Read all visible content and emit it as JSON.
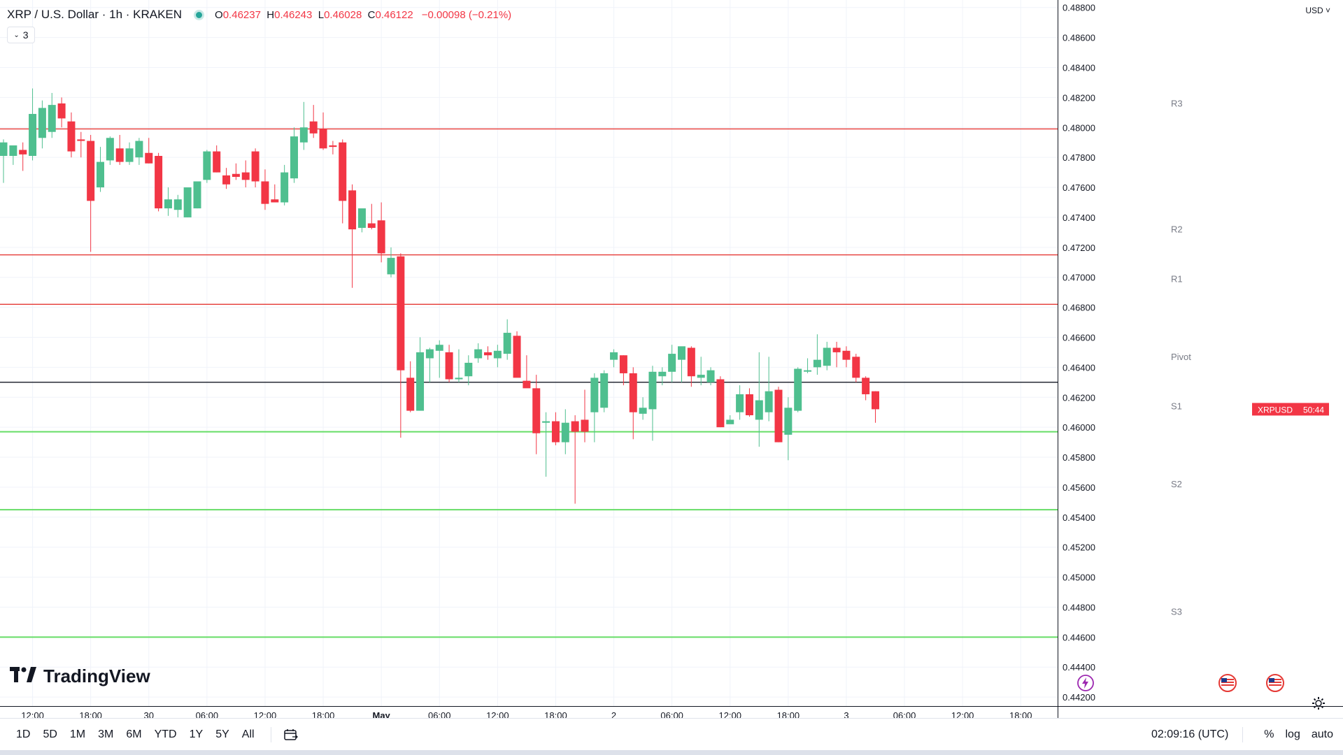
{
  "header": {
    "title": "XRP / U.S. Dollar · 1h · KRAKEN",
    "open_label": "O",
    "open": "0.46237",
    "high_label": "H",
    "high": "0.46243",
    "low_label": "L",
    "low": "0.46028",
    "close_label": "C",
    "close": "0.46122",
    "change": "−0.00098 (−0.21%)",
    "indicators_count": "3",
    "currency": "USD"
  },
  "brand": {
    "name": "TradingView",
    "icon": "tradingview-logo-icon"
  },
  "colors": {
    "up": "#26a69a",
    "up_fill": "#4fbf8f",
    "down": "#f23645",
    "resistance": "#e53935",
    "support": "#66dd66",
    "pivot": "#131722",
    "grid": "#f0f3fa"
  },
  "chart_data": {
    "type": "candlestick",
    "symbol": "XRPUSD",
    "interval": "1h",
    "exchange": "KRAKEN",
    "ylim": [
      0.4414,
      0.4885
    ],
    "y_ticks": [
      "0.48800",
      "0.48600",
      "0.48400",
      "0.48200",
      "0.48000",
      "0.47800",
      "0.47600",
      "0.47400",
      "0.47200",
      "0.47000",
      "0.46800",
      "0.46600",
      "0.46400",
      "0.46200",
      "0.46000",
      "0.45800",
      "0.45600",
      "0.45400",
      "0.45200",
      "0.45000",
      "0.44800",
      "0.44600",
      "0.44400",
      "0.44200"
    ],
    "x_ticks": [
      {
        "label": "12:00",
        "bar": 3
      },
      {
        "label": "18:00",
        "bar": 9
      },
      {
        "label": "30",
        "bar": 15
      },
      {
        "label": "06:00",
        "bar": 21
      },
      {
        "label": "12:00",
        "bar": 27
      },
      {
        "label": "18:00",
        "bar": 33
      },
      {
        "label": "May",
        "bar": 39
      },
      {
        "label": "06:00",
        "bar": 45
      },
      {
        "label": "12:00",
        "bar": 51
      },
      {
        "label": "18:00",
        "bar": 57
      },
      {
        "label": "2",
        "bar": 63
      },
      {
        "label": "06:00",
        "bar": 69
      },
      {
        "label": "12:00",
        "bar": 75
      },
      {
        "label": "18:00",
        "bar": 81
      },
      {
        "label": "3",
        "bar": 87
      },
      {
        "label": "06:00",
        "bar": 93
      },
      {
        "label": "12:00",
        "bar": 99
      },
      {
        "label": "18:00",
        "bar": 105
      }
    ],
    "levels": [
      {
        "name": "R3",
        "value": 0.4799,
        "kind": "resistance"
      },
      {
        "name": "R2",
        "value": 0.4715,
        "kind": "resistance"
      },
      {
        "name": "R1",
        "value": 0.4682,
        "kind": "resistance"
      },
      {
        "name": "Pivot",
        "value": 0.463,
        "kind": "pivot"
      },
      {
        "name": "S1",
        "value": 0.4597,
        "kind": "support"
      },
      {
        "name": "S2",
        "value": 0.4545,
        "kind": "support"
      },
      {
        "name": "S3",
        "value": 0.446,
        "kind": "support"
      }
    ],
    "last_price_label": "XRPUSD",
    "countdown": "50:44",
    "candles": [
      {
        "o": 0.4781,
        "h": 0.4792,
        "l": 0.4763,
        "c": 0.479
      },
      {
        "o": 0.4781,
        "h": 0.4787,
        "l": 0.4775,
        "c": 0.4788
      },
      {
        "o": 0.4785,
        "h": 0.479,
        "l": 0.4771,
        "c": 0.4782
      },
      {
        "o": 0.4781,
        "h": 0.4826,
        "l": 0.4778,
        "c": 0.4809
      },
      {
        "o": 0.4793,
        "h": 0.4818,
        "l": 0.4786,
        "c": 0.4813
      },
      {
        "o": 0.4797,
        "h": 0.4823,
        "l": 0.4793,
        "c": 0.4815
      },
      {
        "o": 0.4816,
        "h": 0.482,
        "l": 0.48,
        "c": 0.4806
      },
      {
        "o": 0.4804,
        "h": 0.481,
        "l": 0.478,
        "c": 0.4784
      },
      {
        "o": 0.4792,
        "h": 0.4797,
        "l": 0.478,
        "c": 0.4791
      },
      {
        "o": 0.4791,
        "h": 0.4795,
        "l": 0.4717,
        "c": 0.4751
      },
      {
        "o": 0.476,
        "h": 0.4787,
        "l": 0.4757,
        "c": 0.4777
      },
      {
        "o": 0.4778,
        "h": 0.4794,
        "l": 0.4775,
        "c": 0.4793
      },
      {
        "o": 0.4786,
        "h": 0.4795,
        "l": 0.4775,
        "c": 0.4777
      },
      {
        "o": 0.4777,
        "h": 0.479,
        "l": 0.4775,
        "c": 0.4786
      },
      {
        "o": 0.478,
        "h": 0.4793,
        "l": 0.4775,
        "c": 0.4791
      },
      {
        "o": 0.4783,
        "h": 0.4793,
        "l": 0.4776,
        "c": 0.4776
      },
      {
        "o": 0.4781,
        "h": 0.4783,
        "l": 0.4744,
        "c": 0.4746
      },
      {
        "o": 0.4746,
        "h": 0.476,
        "l": 0.4741,
        "c": 0.4752
      },
      {
        "o": 0.4745,
        "h": 0.4755,
        "l": 0.474,
        "c": 0.4752
      },
      {
        "o": 0.474,
        "h": 0.4758,
        "l": 0.474,
        "c": 0.476
      },
      {
        "o": 0.4746,
        "h": 0.476,
        "l": 0.4746,
        "c": 0.4764
      },
      {
        "o": 0.4765,
        "h": 0.4785,
        "l": 0.4763,
        "c": 0.4784
      },
      {
        "o": 0.4784,
        "h": 0.4788,
        "l": 0.477,
        "c": 0.477
      },
      {
        "o": 0.4768,
        "h": 0.4773,
        "l": 0.4759,
        "c": 0.4762
      },
      {
        "o": 0.4769,
        "h": 0.4776,
        "l": 0.4765,
        "c": 0.4767
      },
      {
        "o": 0.477,
        "h": 0.4778,
        "l": 0.476,
        "c": 0.4765
      },
      {
        "o": 0.4784,
        "h": 0.4786,
        "l": 0.476,
        "c": 0.4764
      },
      {
        "o": 0.4764,
        "h": 0.4772,
        "l": 0.4745,
        "c": 0.4749
      },
      {
        "o": 0.4752,
        "h": 0.4762,
        "l": 0.475,
        "c": 0.475
      },
      {
        "o": 0.475,
        "h": 0.4775,
        "l": 0.4748,
        "c": 0.477
      },
      {
        "o": 0.4766,
        "h": 0.48,
        "l": 0.4763,
        "c": 0.4794
      },
      {
        "o": 0.479,
        "h": 0.4817,
        "l": 0.4785,
        "c": 0.48
      },
      {
        "o": 0.4804,
        "h": 0.4815,
        "l": 0.4793,
        "c": 0.4796
      },
      {
        "o": 0.4799,
        "h": 0.481,
        "l": 0.4785,
        "c": 0.4786
      },
      {
        "o": 0.4788,
        "h": 0.4791,
        "l": 0.4782,
        "c": 0.4787
      },
      {
        "o": 0.479,
        "h": 0.4792,
        "l": 0.4736,
        "c": 0.4751
      },
      {
        "o": 0.4758,
        "h": 0.4762,
        "l": 0.4693,
        "c": 0.4732
      },
      {
        "o": 0.4733,
        "h": 0.4742,
        "l": 0.473,
        "c": 0.4746
      },
      {
        "o": 0.4736,
        "h": 0.4749,
        "l": 0.4732,
        "c": 0.4733
      },
      {
        "o": 0.4738,
        "h": 0.475,
        "l": 0.471,
        "c": 0.4716
      },
      {
        "o": 0.4702,
        "h": 0.472,
        "l": 0.47,
        "c": 0.4713
      },
      {
        "o": 0.4714,
        "h": 0.4716,
        "l": 0.4593,
        "c": 0.4638
      },
      {
        "o": 0.4633,
        "h": 0.4644,
        "l": 0.461,
        "c": 0.4611
      },
      {
        "o": 0.4611,
        "h": 0.466,
        "l": 0.4611,
        "c": 0.465
      },
      {
        "o": 0.4646,
        "h": 0.4653,
        "l": 0.463,
        "c": 0.4652
      },
      {
        "o": 0.4651,
        "h": 0.4658,
        "l": 0.4633,
        "c": 0.4655
      },
      {
        "o": 0.465,
        "h": 0.4655,
        "l": 0.463,
        "c": 0.4632
      },
      {
        "o": 0.4632,
        "h": 0.4652,
        "l": 0.463,
        "c": 0.4633
      },
      {
        "o": 0.4634,
        "h": 0.4648,
        "l": 0.4628,
        "c": 0.4643
      },
      {
        "o": 0.4646,
        "h": 0.4656,
        "l": 0.4643,
        "c": 0.4652
      },
      {
        "o": 0.465,
        "h": 0.4654,
        "l": 0.4645,
        "c": 0.4648
      },
      {
        "o": 0.4646,
        "h": 0.4655,
        "l": 0.464,
        "c": 0.4651
      },
      {
        "o": 0.4649,
        "h": 0.4672,
        "l": 0.4645,
        "c": 0.4663
      },
      {
        "o": 0.4661,
        "h": 0.4664,
        "l": 0.4635,
        "c": 0.4633
      },
      {
        "o": 0.4631,
        "h": 0.4648,
        "l": 0.4627,
        "c": 0.4626
      },
      {
        "o": 0.4626,
        "h": 0.4635,
        "l": 0.4582,
        "c": 0.4596
      },
      {
        "o": 0.4603,
        "h": 0.461,
        "l": 0.4567,
        "c": 0.4604
      },
      {
        "o": 0.4604,
        "h": 0.461,
        "l": 0.4588,
        "c": 0.459
      },
      {
        "o": 0.459,
        "h": 0.4612,
        "l": 0.4582,
        "c": 0.4603
      },
      {
        "o": 0.4604,
        "h": 0.4608,
        "l": 0.4549,
        "c": 0.4597
      },
      {
        "o": 0.4605,
        "h": 0.4625,
        "l": 0.459,
        "c": 0.4597
      },
      {
        "o": 0.461,
        "h": 0.4636,
        "l": 0.459,
        "c": 0.4633
      },
      {
        "o": 0.4613,
        "h": 0.4638,
        "l": 0.461,
        "c": 0.4636
      },
      {
        "o": 0.4645,
        "h": 0.4652,
        "l": 0.464,
        "c": 0.465
      },
      {
        "o": 0.4648,
        "h": 0.4648,
        "l": 0.4628,
        "c": 0.4636
      },
      {
        "o": 0.4636,
        "h": 0.464,
        "l": 0.4592,
        "c": 0.461
      },
      {
        "o": 0.4609,
        "h": 0.462,
        "l": 0.4605,
        "c": 0.4613
      },
      {
        "o": 0.4612,
        "h": 0.4641,
        "l": 0.4591,
        "c": 0.4637
      },
      {
        "o": 0.4634,
        "h": 0.464,
        "l": 0.4628,
        "c": 0.4637
      },
      {
        "o": 0.4637,
        "h": 0.4655,
        "l": 0.463,
        "c": 0.4649
      },
      {
        "o": 0.4645,
        "h": 0.4653,
        "l": 0.463,
        "c": 0.4654
      },
      {
        "o": 0.4653,
        "h": 0.4654,
        "l": 0.4627,
        "c": 0.4634
      },
      {
        "o": 0.4633,
        "h": 0.4647,
        "l": 0.4628,
        "c": 0.4635
      },
      {
        "o": 0.463,
        "h": 0.464,
        "l": 0.4628,
        "c": 0.4638
      },
      {
        "o": 0.4632,
        "h": 0.4634,
        "l": 0.46,
        "c": 0.46
      },
      {
        "o": 0.4602,
        "h": 0.4608,
        "l": 0.4603,
        "c": 0.4605
      },
      {
        "o": 0.461,
        "h": 0.4628,
        "l": 0.4605,
        "c": 0.4622
      },
      {
        "o": 0.4622,
        "h": 0.4626,
        "l": 0.4607,
        "c": 0.4608
      },
      {
        "o": 0.4605,
        "h": 0.465,
        "l": 0.4587,
        "c": 0.4618
      },
      {
        "o": 0.461,
        "h": 0.4647,
        "l": 0.4604,
        "c": 0.4624
      },
      {
        "o": 0.4625,
        "h": 0.4627,
        "l": 0.459,
        "c": 0.459
      },
      {
        "o": 0.4595,
        "h": 0.462,
        "l": 0.4578,
        "c": 0.4613
      },
      {
        "o": 0.4611,
        "h": 0.464,
        "l": 0.461,
        "c": 0.4639
      },
      {
        "o": 0.4638,
        "h": 0.4646,
        "l": 0.4636,
        "c": 0.4638
      },
      {
        "o": 0.464,
        "h": 0.4662,
        "l": 0.4635,
        "c": 0.4645
      },
      {
        "o": 0.4641,
        "h": 0.4657,
        "l": 0.4638,
        "c": 0.4653
      },
      {
        "o": 0.4653,
        "h": 0.4657,
        "l": 0.464,
        "c": 0.465
      },
      {
        "o": 0.4651,
        "h": 0.4654,
        "l": 0.464,
        "c": 0.4645
      },
      {
        "o": 0.4647,
        "h": 0.4649,
        "l": 0.463,
        "c": 0.4633
      },
      {
        "o": 0.4633,
        "h": 0.4634,
        "l": 0.4618,
        "c": 0.4622
      },
      {
        "o": 0.4624,
        "h": 0.4624,
        "l": 0.4603,
        "c": 0.4612
      }
    ]
  },
  "time_axis": {
    "clock": "02:09:16 (UTC)"
  },
  "bottom_bar": {
    "ranges": [
      "1D",
      "5D",
      "1M",
      "3M",
      "6M",
      "YTD",
      "1Y",
      "5Y",
      "All"
    ],
    "percent": "%",
    "log": "log",
    "auto": "auto"
  }
}
